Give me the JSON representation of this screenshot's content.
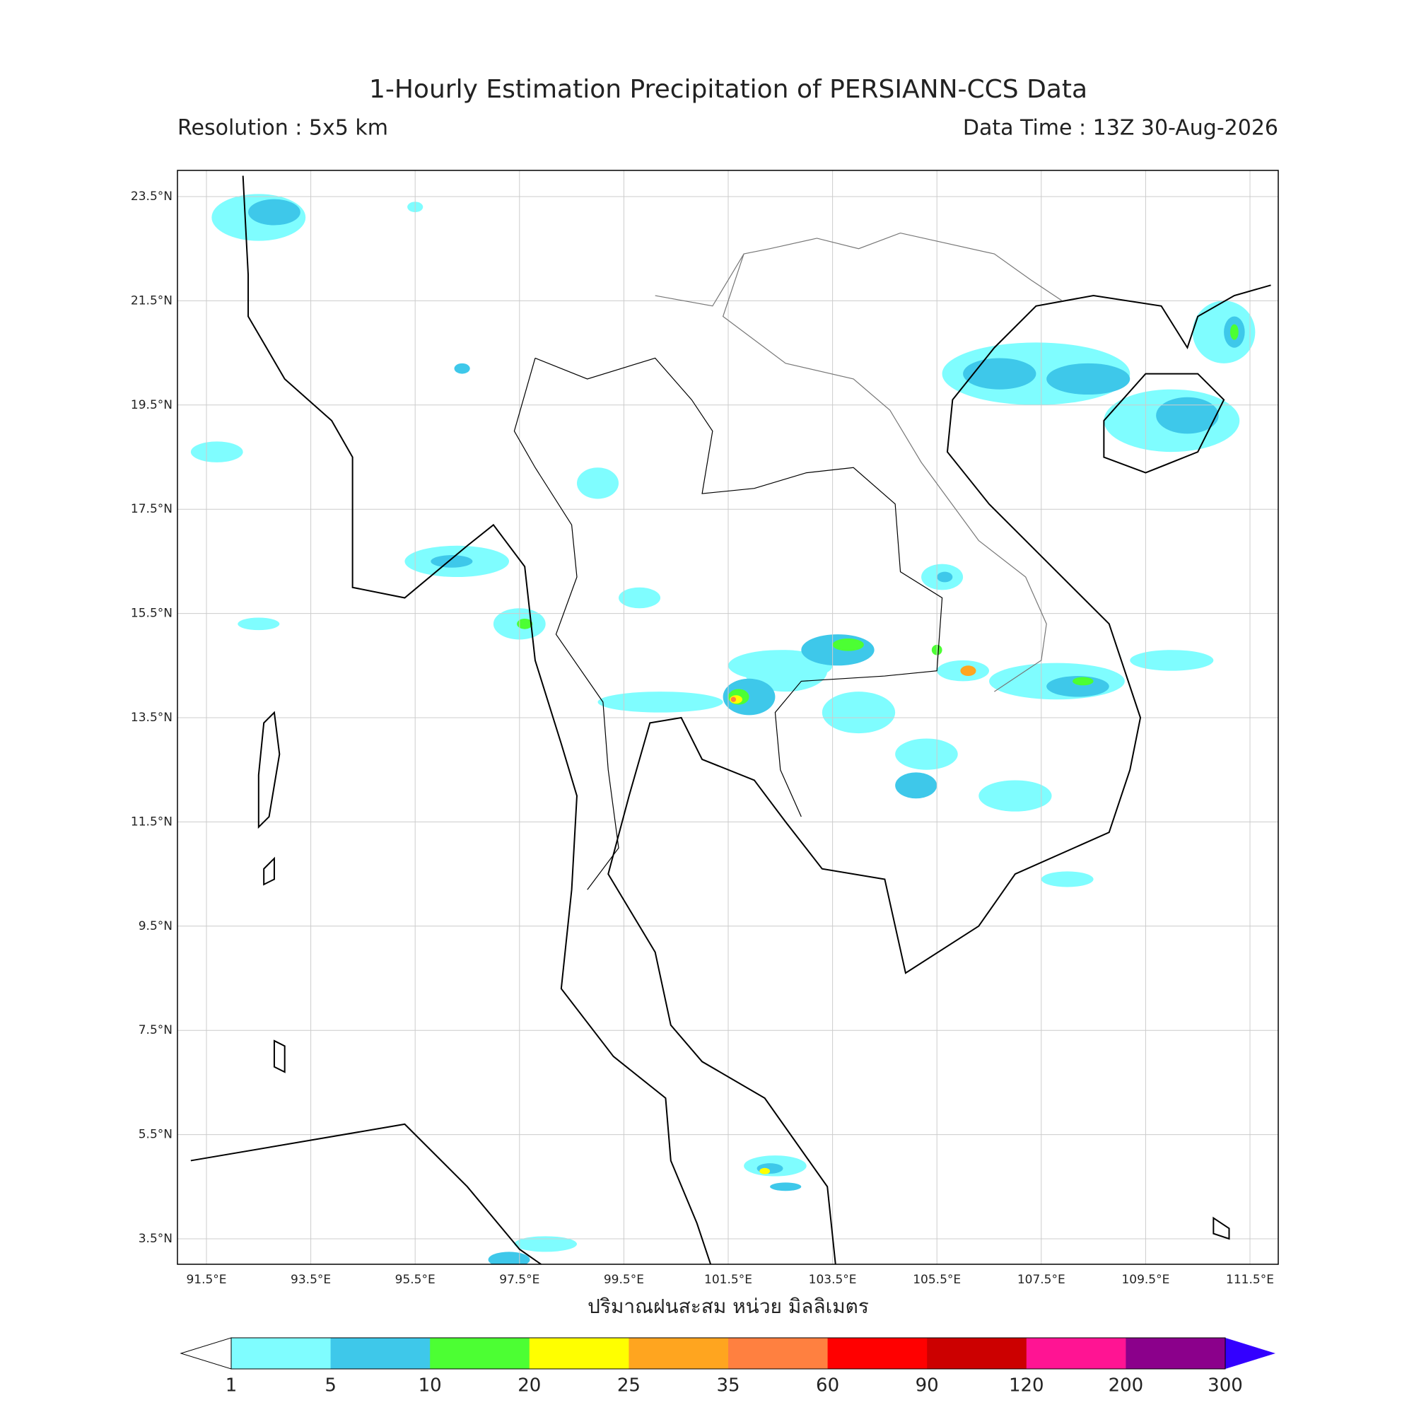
{
  "header": {
    "title": "1-Hourly Estimation Precipitation of PERSIANN-CCS Data",
    "resolution": "Resolution : 5x5 km",
    "data_time": "Data Time : 13Z 30-Aug-2026"
  },
  "map": {
    "lat_ticks": [
      "23.5°N",
      "21.5°N",
      "19.5°N",
      "17.5°N",
      "15.5°N",
      "13.5°N",
      "11.5°N",
      "9.5°N",
      "7.5°N",
      "5.5°N",
      "3.5°N"
    ],
    "lon_ticks": [
      "91.5°E",
      "93.5°E",
      "95.5°E",
      "97.5°E",
      "99.5°E",
      "101.5°E",
      "103.5°E",
      "105.5°E",
      "107.5°E",
      "109.5°E",
      "111.5°E"
    ],
    "xlabel": "ปริมาณฝนสะสม หน่วย มิลลิเมตร"
  },
  "colorbar": {
    "levels": [
      1,
      5,
      10,
      20,
      25,
      35,
      60,
      90,
      120,
      200,
      300
    ],
    "colors": [
      "#7ffdff",
      "#3ec8ea",
      "#4cff33",
      "#ffff00",
      "#ffa51f",
      "#ff8040",
      "#ff0000",
      "#cc0000",
      "#ff1493",
      "#8b008b",
      "#3300ff"
    ]
  }
}
